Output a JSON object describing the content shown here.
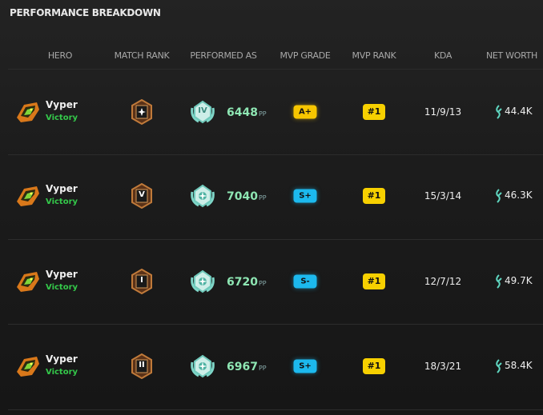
{
  "header": {
    "title": "PERFORMANCE BREAKDOWN"
  },
  "table": {
    "columns": [
      "HERO",
      "MATCH RANK",
      "PERFORMED AS",
      "MVP GRADE",
      "MVP RANK",
      "KDA",
      "NET WORTH"
    ],
    "score_unit": "PP",
    "rows": [
      {
        "hero": "Vyper",
        "result": "Victory",
        "performed_rank": "IV",
        "score": "6448",
        "grade": "A+",
        "mvp_rank": "#1",
        "kda": "11/9/13",
        "net_worth": "44.4K"
      },
      {
        "hero": "Vyper",
        "result": "Victory",
        "match_rank": "V",
        "score": "7040",
        "grade": "S+",
        "mvp_rank": "#1",
        "kda": "15/3/14",
        "net_worth": "46.3K"
      },
      {
        "hero": "Vyper",
        "result": "Victory",
        "match_rank": "I",
        "score": "6720",
        "grade": "S-",
        "mvp_rank": "#1",
        "kda": "12/7/12",
        "net_worth": "49.7K"
      },
      {
        "hero": "Vyper",
        "result": "Victory",
        "match_rank": "II",
        "score": "6967",
        "grade": "S+",
        "mvp_rank": "#1",
        "kda": "18/3/21",
        "net_worth": "58.4K"
      }
    ]
  }
}
